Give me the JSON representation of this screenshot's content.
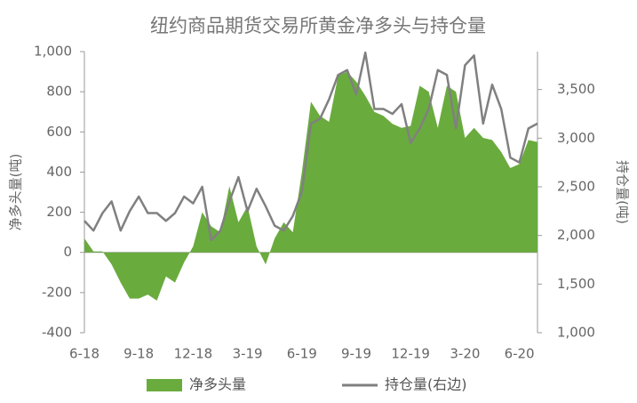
{
  "chart_data": {
    "type": "area-line",
    "title": "纽约商品期货交易所黄金净多头与持仓量",
    "y_label": "净多头量(吨)",
    "y2_label": "持仓量(吨)",
    "categories": [
      "6-18",
      null,
      null,
      null,
      null,
      null,
      "9-18",
      null,
      null,
      null,
      null,
      null,
      "12-18",
      null,
      null,
      null,
      null,
      null,
      "3-19",
      null,
      null,
      null,
      null,
      null,
      "6-19",
      null,
      null,
      null,
      null,
      null,
      "9-19",
      null,
      null,
      null,
      null,
      null,
      "12-19",
      null,
      null,
      null,
      null,
      null,
      "3-20",
      null,
      null,
      null,
      null,
      null,
      "6-20",
      null,
      null
    ],
    "ylim": [
      -400,
      1000
    ],
    "yticks": [
      -400,
      -200,
      0,
      200,
      400,
      600,
      800,
      {
        "value": 1000,
        "label": "1,000"
      }
    ],
    "y2lim": [
      1000,
      3890
    ],
    "y2ticks": [
      {
        "value": 1000,
        "label": "1,000"
      },
      {
        "value": 1500,
        "label": "1,500"
      },
      {
        "value": 2000,
        "label": "2,000"
      },
      {
        "value": 2500,
        "label": "2,500"
      },
      {
        "value": 3000,
        "label": "3,000"
      },
      {
        "value": 3500,
        "label": "3,500"
      }
    ],
    "series": [
      {
        "name": "净多头量",
        "kind": "area",
        "color": "#6aab3e",
        "values": [
          70,
          5,
          5,
          -60,
          -150,
          -230,
          -230,
          -210,
          -240,
          -120,
          -150,
          -50,
          30,
          200,
          130,
          100,
          330,
          150,
          230,
          30,
          -60,
          70,
          150,
          100,
          400,
          750,
          680,
          650,
          880,
          900,
          850,
          780,
          700,
          680,
          640,
          620,
          630,
          830,
          800,
          620,
          830,
          800,
          570,
          620,
          570,
          560,
          500,
          420,
          440,
          560,
          550
        ]
      },
      {
        "name": "持仓量(右边)",
        "kind": "line",
        "axis": "y2",
        "color": "#808080",
        "values": [
          2150,
          2050,
          2230,
          2350,
          2050,
          2250,
          2400,
          2230,
          2230,
          2150,
          2230,
          2400,
          2330,
          2500,
          1950,
          2050,
          2350,
          2600,
          2250,
          2480,
          2300,
          2100,
          2050,
          2200,
          2450,
          3150,
          3200,
          3400,
          3650,
          3700,
          3450,
          3880,
          3300,
          3300,
          3250,
          3350,
          2950,
          3100,
          3300,
          3700,
          3650,
          3100,
          3750,
          3850,
          3150,
          3550,
          3300,
          2800,
          2750,
          3100,
          3150
        ]
      }
    ]
  }
}
